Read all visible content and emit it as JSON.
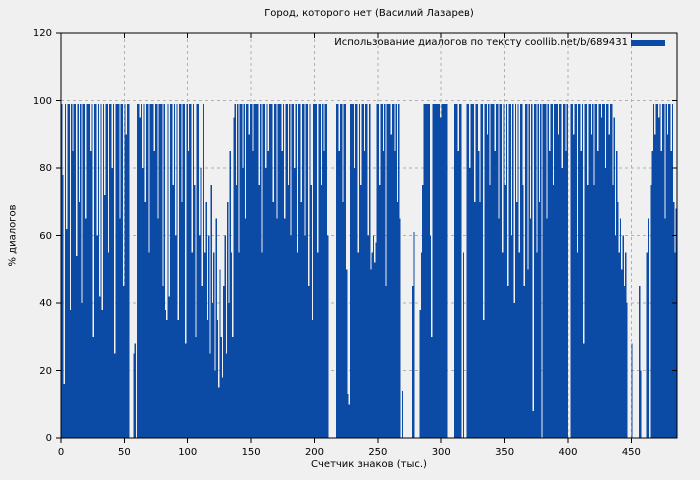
{
  "chart_data": {
    "type": "bar",
    "style": "impulses",
    "title": "Город, которого нет (Василий Лазарев)",
    "legend": "Использование диалогов по тексту coollib.net/b/689431",
    "legend_position": "top-right",
    "xlabel": "Счетчик знаков (тыс.)",
    "ylabel": "% диалогов",
    "xlim": [
      0,
      486
    ],
    "ylim": [
      0,
      120
    ],
    "x_ticks": [
      0,
      50,
      100,
      150,
      200,
      250,
      300,
      350,
      400,
      450
    ],
    "y_ticks": [
      0,
      20,
      40,
      60,
      80,
      100,
      120
    ],
    "grid": true,
    "colors": {
      "bar": "#0b4aa5",
      "grid": "#b0b0b0",
      "frame": "#000000",
      "background": "#f0f0f0"
    },
    "x_start": 0,
    "x_step": 1,
    "values": [
      99,
      78,
      16,
      99,
      62,
      99,
      99,
      38,
      99,
      85,
      99,
      99,
      54,
      99,
      70,
      99,
      40,
      99,
      99,
      65,
      99,
      99,
      99,
      85,
      99,
      30,
      99,
      99,
      60,
      99,
      42,
      99,
      38,
      99,
      72,
      99,
      99,
      55,
      99,
      99,
      80,
      99,
      25,
      99,
      99,
      99,
      65,
      99,
      99,
      45,
      99,
      90,
      99,
      99,
      0,
      0,
      0,
      25,
      28,
      0,
      99,
      99,
      95,
      99,
      80,
      99,
      70,
      99,
      99,
      55,
      99,
      99,
      99,
      85,
      99,
      99,
      65,
      99,
      99,
      99,
      45,
      99,
      38,
      35,
      99,
      42,
      99,
      99,
      75,
      99,
      60,
      99,
      35,
      99,
      99,
      70,
      99,
      99,
      28,
      99,
      85,
      99,
      99,
      55,
      99,
      75,
      30,
      99,
      99,
      60,
      80,
      45,
      99,
      55,
      70,
      35,
      60,
      25,
      75,
      40,
      55,
      20,
      65,
      35,
      15,
      50,
      30,
      18,
      45,
      60,
      25,
      70,
      40,
      85,
      55,
      30,
      95,
      99,
      75,
      99,
      55,
      99,
      99,
      80,
      99,
      65,
      99,
      99,
      90,
      99,
      99,
      85,
      99,
      99,
      99,
      99,
      75,
      99,
      55,
      99,
      99,
      80,
      99,
      85,
      99,
      99,
      99,
      70,
      99,
      99,
      65,
      99,
      99,
      99,
      85,
      99,
      65,
      99,
      99,
      75,
      99,
      60,
      99,
      99,
      80,
      99,
      55,
      99,
      99,
      70,
      99,
      99,
      60,
      99,
      99,
      45,
      99,
      75,
      35,
      99,
      99,
      99,
      55,
      99,
      99,
      75,
      99,
      85,
      99,
      99,
      60,
      0,
      0,
      0,
      0,
      0,
      0,
      99,
      99,
      85,
      99,
      99,
      70,
      99,
      99,
      50,
      13,
      10,
      99,
      99,
      99,
      80,
      99,
      99,
      55,
      99,
      75,
      99,
      99,
      85,
      99,
      99,
      60,
      99,
      50,
      55,
      60,
      52,
      58,
      99,
      99,
      75,
      99,
      99,
      85,
      99,
      45,
      99,
      99,
      99,
      90,
      99,
      99,
      85,
      99,
      70,
      99,
      65,
      0,
      14,
      0,
      0,
      0,
      0,
      0,
      0,
      0,
      45,
      61,
      0,
      0,
      0,
      0,
      38,
      55,
      75,
      99,
      99,
      99,
      99,
      99,
      60,
      30,
      99,
      99,
      99,
      99,
      99,
      99,
      95,
      99,
      99,
      99,
      99,
      99,
      0,
      0,
      0,
      0,
      0,
      99,
      99,
      99,
      85,
      99,
      99,
      0,
      55,
      0,
      0,
      99,
      99,
      80,
      99,
      99,
      99,
      70,
      99,
      99,
      85,
      70,
      99,
      99,
      35,
      99,
      99,
      90,
      99,
      75,
      99,
      99,
      99,
      85,
      99,
      99,
      65,
      99,
      99,
      55,
      99,
      75,
      99,
      45,
      99,
      99,
      60,
      99,
      40,
      99,
      70,
      99,
      55,
      99,
      99,
      75,
      45,
      99,
      99,
      50,
      99,
      65,
      99,
      8,
      99,
      99,
      55,
      99,
      70,
      99,
      0,
      99,
      99,
      99,
      65,
      99,
      85,
      99,
      99,
      75,
      99,
      99,
      99,
      90,
      99,
      99,
      80,
      99,
      99,
      85,
      99,
      0,
      0,
      99,
      99,
      90,
      99,
      99,
      55,
      99,
      99,
      85,
      99,
      28,
      99,
      99,
      75,
      99,
      99,
      90,
      99,
      75,
      99,
      99,
      85,
      99,
      99,
      95,
      99,
      99,
      80,
      99,
      99,
      90,
      99,
      99,
      75,
      95,
      60,
      85,
      70,
      55,
      65,
      50,
      60,
      45,
      55,
      40,
      0,
      0,
      0,
      28,
      0,
      0,
      0,
      0,
      0,
      45,
      20,
      0,
      0,
      0,
      0,
      55,
      65,
      0,
      75,
      85,
      99,
      90,
      99,
      99,
      95,
      99,
      85,
      99,
      99,
      65,
      99,
      90,
      99,
      99,
      85,
      99,
      70,
      55,
      68
    ]
  }
}
